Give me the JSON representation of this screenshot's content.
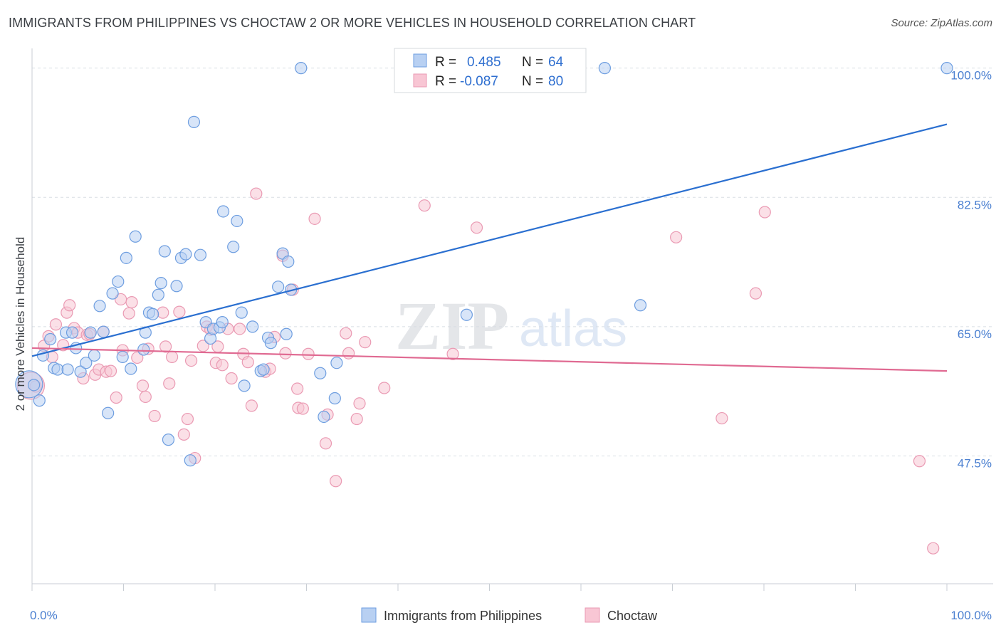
{
  "title": "IMMIGRANTS FROM PHILIPPINES VS CHOCTAW 2 OR MORE VEHICLES IN HOUSEHOLD CORRELATION CHART",
  "source": "Source: ZipAtlas.com",
  "watermark": {
    "zip": "ZIP",
    "atlas": "atlas"
  },
  "colors": {
    "blue_fill": "#b8d0f2",
    "blue_stroke": "#6e9ee0",
    "blue_line": "#2a6fd0",
    "pink_fill": "#f8c6d4",
    "pink_stroke": "#ea9ab3",
    "pink_line": "#e06a92",
    "grid": "#d8dde3",
    "tick_label": "#4a7fd0"
  },
  "legend": {
    "rows": [
      {
        "r_label": "R =",
        "r_value": "0.485",
        "n_label": "N =",
        "n_value": "64",
        "series": "blue"
      },
      {
        "r_label": "R =",
        "r_value": "-0.087",
        "n_label": "N =",
        "n_value": "80",
        "series": "pink"
      }
    ]
  },
  "chart_data": {
    "type": "scatter",
    "title": "IMMIGRANTS FROM PHILIPPINES VS CHOCTAW 2 OR MORE VEHICLES IN HOUSEHOLD CORRELATION CHART",
    "xlabel": "",
    "ylabel": "2 or more Vehicles in Household",
    "xlim": [
      0,
      100
    ],
    "ylim": [
      30.2,
      101.7
    ],
    "x_tick_labels": [
      {
        "value": 0,
        "label": "0.0%"
      },
      {
        "value": 100,
        "label": "100.0%"
      }
    ],
    "y_tick_labels": [
      {
        "value": 100.0,
        "label": "100.0%"
      },
      {
        "value": 82.5,
        "label": "82.5%"
      },
      {
        "value": 65.0,
        "label": "65.0%"
      },
      {
        "value": 47.5,
        "label": "47.5%"
      }
    ],
    "grid": true,
    "legend_position": "top-center",
    "series": [
      {
        "name": "Immigrants from Philippines",
        "color": "blue",
        "trend": {
          "x": [
            0,
            100
          ],
          "y": [
            61.0,
            92.4
          ]
        },
        "points": [
          [
            0.2,
            57.1
          ],
          [
            0.8,
            55.0
          ],
          [
            1.2,
            61.1
          ],
          [
            2.0,
            63.3
          ],
          [
            2.4,
            59.4
          ],
          [
            2.8,
            59.2
          ],
          [
            3.7,
            64.2
          ],
          [
            3.9,
            59.2
          ],
          [
            4.4,
            64.2
          ],
          [
            4.8,
            62.1
          ],
          [
            5.3,
            58.9
          ],
          [
            5.9,
            60.1
          ],
          [
            6.4,
            64.2
          ],
          [
            6.8,
            61.1
          ],
          [
            7.4,
            67.8
          ],
          [
            7.8,
            64.3
          ],
          [
            8.3,
            53.3
          ],
          [
            8.8,
            69.5
          ],
          [
            9.4,
            71.1
          ],
          [
            9.9,
            60.9
          ],
          [
            10.3,
            74.3
          ],
          [
            10.8,
            59.3
          ],
          [
            11.3,
            77.2
          ],
          [
            12.2,
            61.9
          ],
          [
            12.4,
            64.2
          ],
          [
            12.8,
            66.9
          ],
          [
            13.2,
            66.7
          ],
          [
            13.8,
            69.3
          ],
          [
            14.1,
            70.9
          ],
          [
            14.5,
            75.2
          ],
          [
            14.9,
            49.7
          ],
          [
            15.8,
            70.5
          ],
          [
            16.3,
            74.3
          ],
          [
            16.8,
            74.8
          ],
          [
            17.3,
            46.9
          ],
          [
            17.7,
            92.7
          ],
          [
            18.4,
            74.7
          ],
          [
            19.0,
            65.6
          ],
          [
            19.5,
            63.4
          ],
          [
            19.8,
            64.7
          ],
          [
            20.5,
            64.9
          ],
          [
            20.8,
            65.6
          ],
          [
            20.9,
            80.6
          ],
          [
            22.0,
            75.8
          ],
          [
            22.4,
            79.3
          ],
          [
            22.9,
            66.9
          ],
          [
            23.2,
            57.0
          ],
          [
            24.1,
            65.0
          ],
          [
            25.0,
            59.0
          ],
          [
            25.3,
            59.2
          ],
          [
            25.8,
            63.5
          ],
          [
            26.1,
            62.8
          ],
          [
            26.9,
            70.4
          ],
          [
            27.4,
            74.9
          ],
          [
            27.8,
            64.0
          ],
          [
            28.0,
            73.8
          ],
          [
            28.3,
            70.0
          ],
          [
            29.4,
            100.0
          ],
          [
            31.5,
            58.7
          ],
          [
            31.9,
            52.8
          ],
          [
            33.1,
            55.3
          ],
          [
            33.3,
            60.1
          ],
          [
            47.5,
            66.6
          ],
          [
            62.6,
            100.0
          ],
          [
            66.5,
            67.9
          ],
          [
            100.0,
            100.0
          ]
        ],
        "large_points": [
          [
            0.3,
            57.2
          ]
        ]
      },
      {
        "name": "Choctaw",
        "color": "pink",
        "trend": {
          "x": [
            0,
            100
          ],
          "y": [
            62.1,
            59.0
          ]
        },
        "points": [
          [
            0.4,
            56.9
          ],
          [
            1.3,
            62.4
          ],
          [
            1.8,
            63.7
          ],
          [
            2.2,
            60.9
          ],
          [
            2.6,
            65.3
          ],
          [
            3.4,
            62.5
          ],
          [
            3.8,
            66.9
          ],
          [
            4.1,
            67.9
          ],
          [
            4.6,
            64.8
          ],
          [
            5.0,
            64.2
          ],
          [
            5.6,
            58.0
          ],
          [
            6.0,
            63.9
          ],
          [
            6.3,
            64.0
          ],
          [
            6.9,
            58.5
          ],
          [
            7.3,
            59.2
          ],
          [
            7.8,
            64.3
          ],
          [
            8.1,
            58.9
          ],
          [
            8.6,
            59.0
          ],
          [
            9.2,
            55.4
          ],
          [
            9.7,
            68.7
          ],
          [
            9.9,
            61.8
          ],
          [
            10.6,
            66.8
          ],
          [
            10.9,
            68.3
          ],
          [
            11.5,
            60.8
          ],
          [
            12.1,
            57.0
          ],
          [
            12.4,
            55.5
          ],
          [
            12.7,
            62.0
          ],
          [
            13.4,
            52.9
          ],
          [
            14.3,
            66.9
          ],
          [
            14.6,
            62.3
          ],
          [
            15.0,
            57.3
          ],
          [
            15.3,
            60.9
          ],
          [
            16.1,
            67.0
          ],
          [
            16.6,
            50.4
          ],
          [
            17.0,
            52.5
          ],
          [
            17.4,
            60.4
          ],
          [
            17.8,
            47.2
          ],
          [
            18.7,
            62.4
          ],
          [
            19.1,
            65.0
          ],
          [
            19.5,
            64.6
          ],
          [
            20.1,
            60.1
          ],
          [
            20.3,
            62.3
          ],
          [
            20.8,
            59.8
          ],
          [
            21.4,
            64.7
          ],
          [
            21.8,
            58.0
          ],
          [
            22.7,
            64.7
          ],
          [
            23.1,
            61.3
          ],
          [
            23.6,
            60.2
          ],
          [
            24.0,
            54.3
          ],
          [
            24.5,
            83.0
          ],
          [
            25.5,
            58.9
          ],
          [
            26.0,
            59.3
          ],
          [
            26.5,
            63.6
          ],
          [
            27.4,
            74.6
          ],
          [
            27.7,
            61.4
          ],
          [
            28.5,
            70.0
          ],
          [
            29.0,
            56.6
          ],
          [
            29.1,
            54.0
          ],
          [
            29.6,
            53.9
          ],
          [
            30.2,
            61.3
          ],
          [
            30.9,
            79.6
          ],
          [
            32.1,
            49.2
          ],
          [
            32.3,
            53.1
          ],
          [
            33.2,
            44.1
          ],
          [
            34.3,
            64.1
          ],
          [
            34.6,
            61.4
          ],
          [
            35.5,
            52.5
          ],
          [
            35.8,
            54.6
          ],
          [
            36.4,
            62.9
          ],
          [
            38.5,
            56.7
          ],
          [
            42.9,
            81.4
          ],
          [
            46.0,
            61.3
          ],
          [
            48.6,
            78.4
          ],
          [
            70.4,
            77.1
          ],
          [
            75.4,
            52.6
          ],
          [
            79.1,
            69.5
          ],
          [
            80.1,
            80.5
          ],
          [
            97.0,
            46.8
          ],
          [
            98.5,
            35.0
          ]
        ],
        "large_points": [
          [
            0.5,
            57.0
          ]
        ]
      }
    ]
  },
  "bottom_legend": [
    {
      "label": "Immigrants from Philippines",
      "color": "blue"
    },
    {
      "label": "Choctaw",
      "color": "pink"
    }
  ]
}
